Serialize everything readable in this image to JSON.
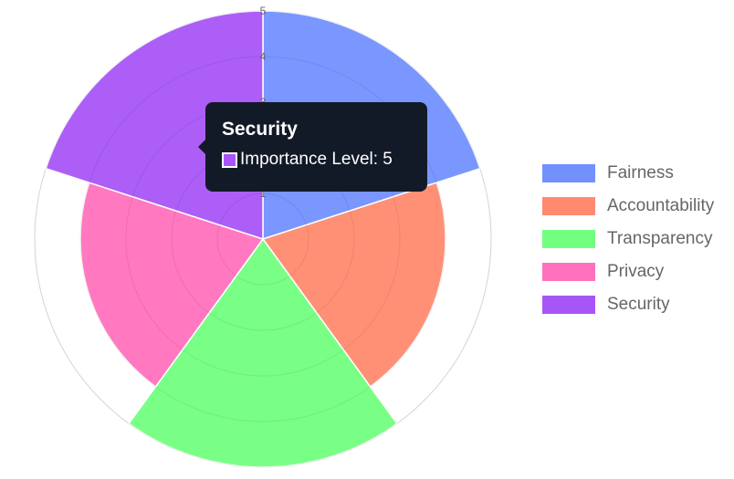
{
  "chart_data": {
    "type": "polarArea",
    "categories": [
      "Fairness",
      "Accountability",
      "Transparency",
      "Privacy",
      "Security"
    ],
    "series": [
      {
        "name": "Importance Level",
        "values": [
          5,
          4,
          5,
          4,
          5
        ]
      }
    ],
    "colors": [
      "#7390ff",
      "#ff8a6f",
      "#72ff7f",
      "#ff71bd",
      "#a855f7"
    ],
    "r_range": [
      0,
      5
    ],
    "ticks": [
      "1",
      "2",
      "3",
      "4",
      "5"
    ],
    "legend_position": "right",
    "grid": true
  },
  "tooltip": {
    "title": "Security",
    "label": "Importance Level: 5",
    "color": "#a855f7"
  }
}
